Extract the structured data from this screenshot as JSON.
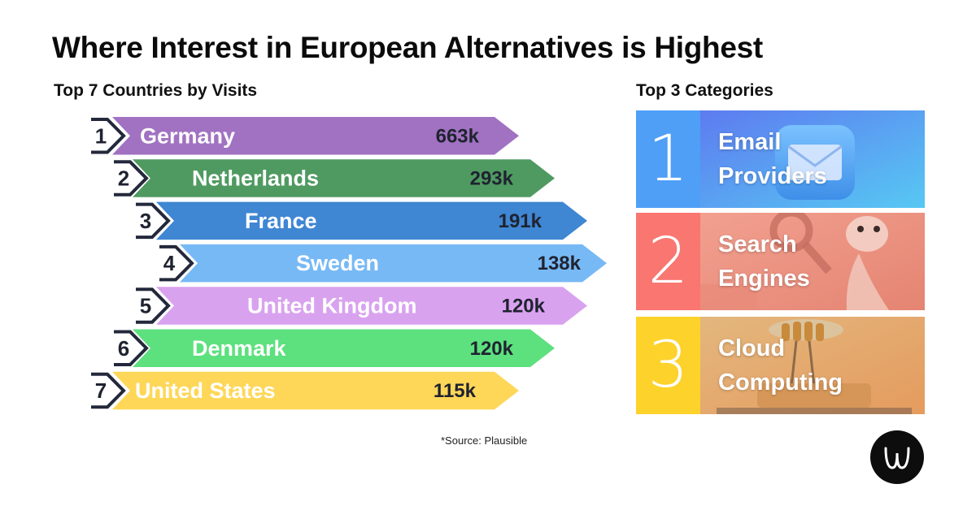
{
  "title": "Where Interest in European Alternatives is Highest",
  "left_subtitle": "Top 7 Countries by Visits",
  "right_subtitle": "Top 3 Categories",
  "source": "*Source: Plausible",
  "chart_data": {
    "type": "bar",
    "title": "Top 7 Countries by Visits",
    "unit": "visits",
    "categories": [
      "Germany",
      "Netherlands",
      "France",
      "Sweden",
      "United Kingdom",
      "Denmark",
      "United States"
    ],
    "values": [
      663000,
      293000,
      191000,
      138000,
      120000,
      120000,
      115000
    ],
    "value_labels": [
      "663k",
      "293k",
      "191k",
      "138k",
      "120k",
      "120k",
      "115k"
    ],
    "ranks": [
      "1",
      "2",
      "3",
      "4",
      "5",
      "6",
      "7"
    ],
    "colors": [
      "#a172c2",
      "#4f9a61",
      "#3f86d3",
      "#77b9f5",
      "#d9a2ef",
      "#5de07e",
      "#fed758"
    ]
  },
  "categories": [
    {
      "rank": "1",
      "line1": "Email",
      "line2": "Providers",
      "icon": "envelope-icon",
      "num_color": "#4f9ff7",
      "img_color": "#6fb8f6"
    },
    {
      "rank": "2",
      "line1": "Search",
      "line2": "Engines",
      "icon": "magnifier-robot-icon",
      "num_color": "#fa7670",
      "img_color": "#ee8f80"
    },
    {
      "rank": "3",
      "line1": "Cloud",
      "line2": "Computing",
      "icon": "cloud-chip-icon",
      "num_color": "#fdd22a",
      "img_color": "#e9a869"
    }
  ],
  "logo": {
    "icon": "brand-logo-icon"
  }
}
